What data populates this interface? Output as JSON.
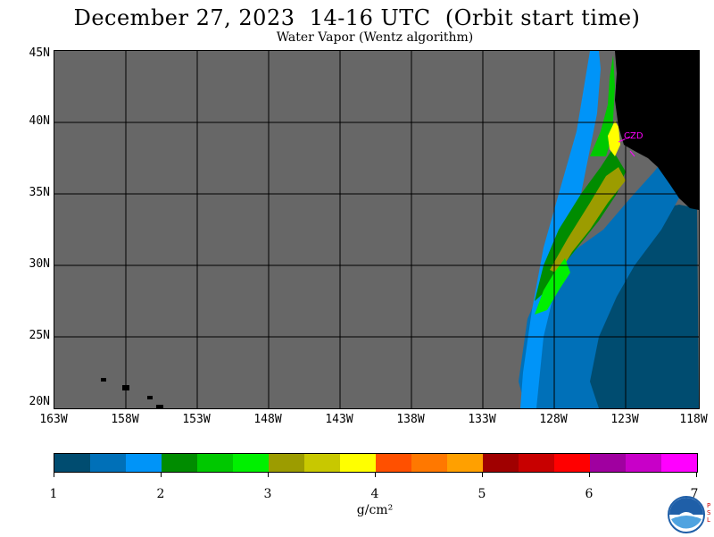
{
  "title": "December 27, 2023  14-16 UTC  (Orbit start time)",
  "subtitle": "Water Vapor (Wentz algorithm)",
  "map": {
    "lat_labels": [
      "45N",
      "40N",
      "35N",
      "30N",
      "25N",
      "20N"
    ],
    "lon_labels": [
      "163W",
      "158W",
      "153W",
      "148W",
      "143W",
      "138W",
      "133W",
      "128W",
      "123W",
      "118W"
    ],
    "lat_range": [
      20,
      45
    ],
    "lon_range": [
      -163,
      -118
    ],
    "no_data_color": "#676767",
    "land_color": "#000000",
    "station": "CZD"
  },
  "colorbar": {
    "ticks": [
      "1",
      "2",
      "3",
      "4",
      "5",
      "6",
      "7"
    ],
    "range": [
      1,
      7
    ],
    "units": "g/cm²",
    "colors": [
      "#004c70",
      "#0070b8",
      "#0094f8",
      "#008c00",
      "#00c800",
      "#00f000",
      "#9c9c00",
      "#c8c800",
      "#ffff00",
      "#ff5000",
      "#ff7800",
      "#ffa000",
      "#a00000",
      "#c80000",
      "#ff0000",
      "#a000a0",
      "#c800c8",
      "#ff00ff"
    ]
  },
  "logo": {
    "name": "NOAA",
    "side_text": "PSL"
  }
}
